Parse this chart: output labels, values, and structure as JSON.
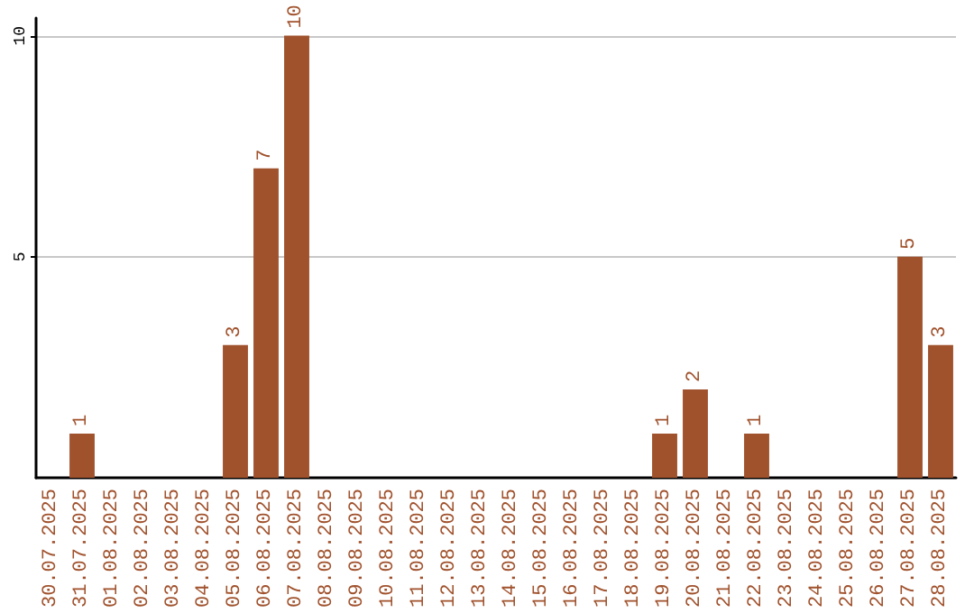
{
  "chart_data": {
    "type": "bar",
    "categories": [
      "30.07.2025",
      "31.07.2025",
      "01.08.2025",
      "02.08.2025",
      "03.08.2025",
      "04.08.2025",
      "05.08.2025",
      "06.08.2025",
      "07.08.2025",
      "08.08.2025",
      "09.08.2025",
      "10.08.2025",
      "11.08.2025",
      "12.08.2025",
      "13.08.2025",
      "14.08.2025",
      "15.08.2025",
      "16.08.2025",
      "17.08.2025",
      "18.08.2025",
      "19.08.2025",
      "20.08.2025",
      "21.08.2025",
      "22.08.2025",
      "23.08.2025",
      "24.08.2025",
      "25.08.2025",
      "26.08.2025",
      "27.08.2025",
      "28.08.2025"
    ],
    "values": [
      0,
      1,
      0,
      0,
      0,
      0,
      3,
      7,
      10,
      0,
      0,
      0,
      0,
      0,
      0,
      0,
      0,
      0,
      0,
      0,
      1,
      2,
      0,
      1,
      0,
      0,
      0,
      0,
      5,
      3
    ],
    "value_labels": [
      null,
      "1",
      null,
      null,
      null,
      null,
      "3",
      "7",
      "10",
      null,
      null,
      null,
      null,
      null,
      null,
      null,
      null,
      null,
      null,
      null,
      "1",
      "2",
      null,
      "1",
      null,
      null,
      null,
      null,
      "5",
      "3"
    ],
    "color": "#a0522d",
    "ylim": [
      0,
      10.4
    ],
    "yticks": [
      5,
      10
    ],
    "grid": "y"
  }
}
